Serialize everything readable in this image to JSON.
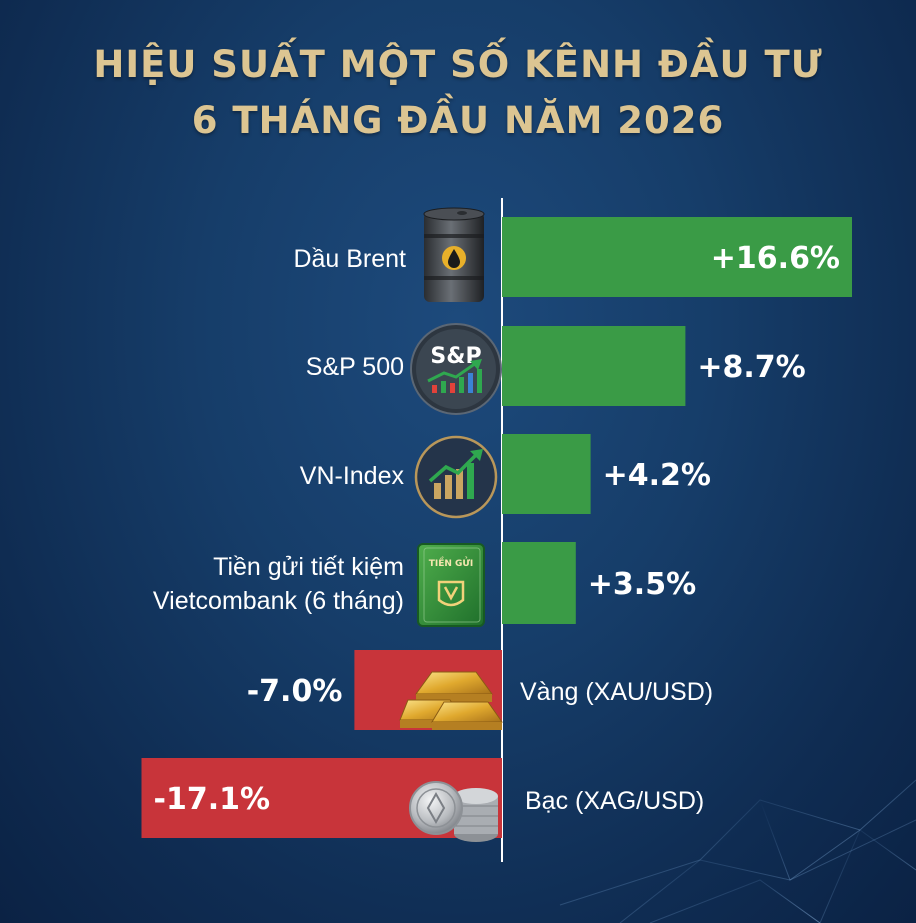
{
  "title": {
    "line1": "HIỆU SUẤT MỘT SỐ KÊNH ĐẦU TƯ",
    "line2": "6 THÁNG ĐẦU NĂM 2026"
  },
  "colors": {
    "positive": "#3a9b46",
    "negative": "#c8343a",
    "title": "#dcc592",
    "background": "#163d69"
  },
  "icons": [
    "oil-barrel-icon",
    "sp500-badge-icon",
    "vn-index-chart-icon",
    "savings-book-icon",
    "gold-bars-icon",
    "silver-coins-icon"
  ],
  "icon_texts": {
    "sp500": "S&P",
    "savings_book": "TIỀN GỬI"
  },
  "chart_data": {
    "type": "bar",
    "orientation": "horizontal",
    "title": "HIỆU SUẤT MỘT SỐ KÊNH ĐẦU TƯ 6 THÁNG ĐẦU NĂM 2026",
    "categories": [
      [
        "Dầu Brent"
      ],
      [
        "S&P 500"
      ],
      [
        "VN-Index"
      ],
      [
        "Tiền gửi tiết kiệm",
        "Vietcombank (6 tháng)"
      ],
      [
        "Vàng (XAU/USD)"
      ],
      [
        "Bạc (XAG/USD)"
      ]
    ],
    "values": [
      16.6,
      8.7,
      4.2,
      3.5,
      -7.0,
      -17.1
    ],
    "value_labels": [
      "+16.6%",
      "+8.7%",
      "+4.2%",
      "+3.5%",
      "-7.0%",
      "-17.1%"
    ],
    "unit": "%",
    "xlim": [
      -17.1,
      16.6
    ],
    "grid": false,
    "legend": "none"
  }
}
